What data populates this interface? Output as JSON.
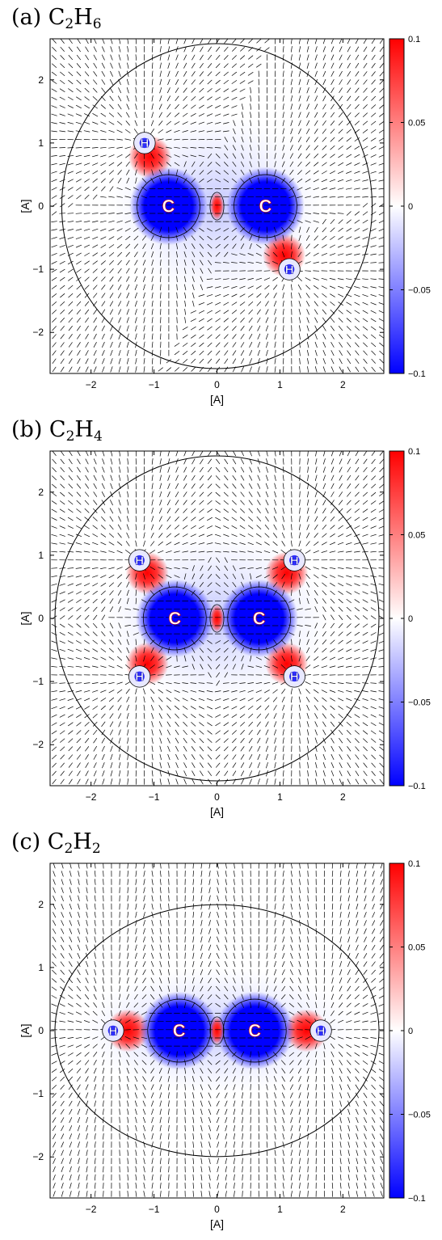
{
  "colors": {
    "positive": "#ff0000",
    "negative": "#0000ff",
    "zero": "#ffffff",
    "contour": "#000000"
  },
  "chart_data": [
    {
      "type": "heatmap",
      "title": "(a) C2H6",
      "title_parts": [
        "(a) C",
        "2",
        "H",
        "6"
      ],
      "xlabel": "[A]",
      "ylabel": "[A]",
      "xlim": [
        -2.65,
        2.65
      ],
      "ylim": [
        -2.65,
        2.65
      ],
      "x_ticks": [
        -2,
        -1,
        0,
        1,
        2
      ],
      "y_ticks": [
        -2,
        -1,
        0,
        1,
        2
      ],
      "colorbar": {
        "min": -0.1,
        "max": 0.1,
        "ticks": [
          0.1,
          0.05,
          0,
          -0.05,
          -0.1
        ],
        "tick_labels": [
          "0.1",
          "0.05",
          "0",
          "-0.05",
          "-0.1"
        ]
      },
      "atoms": [
        {
          "label": "C",
          "x": -0.77,
          "y": 0.0
        },
        {
          "label": "C",
          "x": 0.77,
          "y": 0.0
        },
        {
          "label": "H",
          "x": -1.15,
          "y": 1.0
        },
        {
          "label": "H",
          "x": 1.15,
          "y": -1.0
        }
      ]
    },
    {
      "type": "heatmap",
      "title": "(b) C2H4",
      "title_parts": [
        "(b) C",
        "2",
        "H",
        "4"
      ],
      "xlabel": "[A]",
      "ylabel": "[A]",
      "xlim": [
        -2.65,
        2.65
      ],
      "ylim": [
        -2.65,
        2.65
      ],
      "x_ticks": [
        -2,
        -1,
        0,
        1,
        2
      ],
      "y_ticks": [
        -2,
        -1,
        0,
        1,
        2
      ],
      "colorbar": {
        "min": -0.1,
        "max": 0.1,
        "ticks": [
          0.1,
          0.05,
          0,
          -0.05,
          -0.1
        ],
        "tick_labels": [
          "0.1",
          "0.05",
          "0",
          "-0.05",
          "-0.1"
        ]
      },
      "atoms": [
        {
          "label": "C",
          "x": -0.67,
          "y": 0.0
        },
        {
          "label": "C",
          "x": 0.67,
          "y": 0.0
        },
        {
          "label": "H",
          "x": -1.23,
          "y": 0.92
        },
        {
          "label": "H",
          "x": 1.23,
          "y": 0.92
        },
        {
          "label": "H",
          "x": -1.23,
          "y": -0.92
        },
        {
          "label": "H",
          "x": 1.23,
          "y": -0.92
        }
      ]
    },
    {
      "type": "heatmap",
      "title": "(c) C2H2",
      "title_parts": [
        "(c) C",
        "2",
        "H",
        "2"
      ],
      "xlabel": "[A]",
      "ylabel": "[A]",
      "xlim": [
        -2.65,
        2.65
      ],
      "ylim": [
        -2.65,
        2.65
      ],
      "x_ticks": [
        -2,
        -1,
        0,
        1,
        2
      ],
      "y_ticks": [
        -2,
        -1,
        0,
        1,
        2
      ],
      "colorbar": {
        "min": -0.1,
        "max": 0.1,
        "ticks": [
          0.1,
          0.05,
          0,
          -0.05,
          -0.1
        ],
        "tick_labels": [
          "0.1",
          "0.05",
          "0",
          "-0.05",
          "-0.1"
        ]
      },
      "atoms": [
        {
          "label": "C",
          "x": -0.6,
          "y": 0.0
        },
        {
          "label": "C",
          "x": 0.6,
          "y": 0.0
        },
        {
          "label": "H",
          "x": -1.65,
          "y": 0.0
        },
        {
          "label": "H",
          "x": 1.65,
          "y": 0.0
        }
      ]
    }
  ]
}
